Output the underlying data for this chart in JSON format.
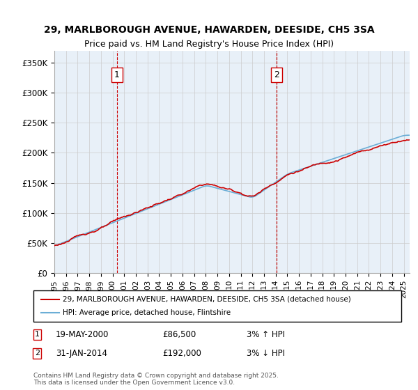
{
  "title_line1": "29, MARLBOROUGH AVENUE, HAWARDEN, DEESIDE, CH5 3SA",
  "title_line2": "Price paid vs. HM Land Registry's House Price Index (HPI)",
  "ylabel_ticks": [
    "£0",
    "£50K",
    "£100K",
    "£150K",
    "£200K",
    "£250K",
    "£300K",
    "£350K"
  ],
  "ylim": [
    0,
    370000
  ],
  "xlim_start": 1995.0,
  "xlim_end": 2025.5,
  "sale1_date": 2000.38,
  "sale1_label": "1",
  "sale1_price": 86500,
  "sale2_date": 2014.08,
  "sale2_label": "2",
  "sale2_price": 192000,
  "legend_line1": "29, MARLBOROUGH AVENUE, HAWARDEN, DEESIDE, CH5 3SA (detached house)",
  "legend_line2": "HPI: Average price, detached house, Flintshire",
  "note1_label": "1",
  "note1_date": "19-MAY-2000",
  "note1_price": "£86,500",
  "note1_pct": "3% ↑ HPI",
  "note2_label": "2",
  "note2_date": "31-JAN-2014",
  "note2_price": "£192,000",
  "note2_pct": "3% ↓ HPI",
  "copyright": "Contains HM Land Registry data © Crown copyright and database right 2025.\nThis data is licensed under the Open Government Licence v3.0.",
  "hpi_color": "#6baed6",
  "price_color": "#cc0000",
  "bg_color": "#e8f0f8",
  "grid_color": "#cccccc",
  "vline_color": "#cc0000"
}
